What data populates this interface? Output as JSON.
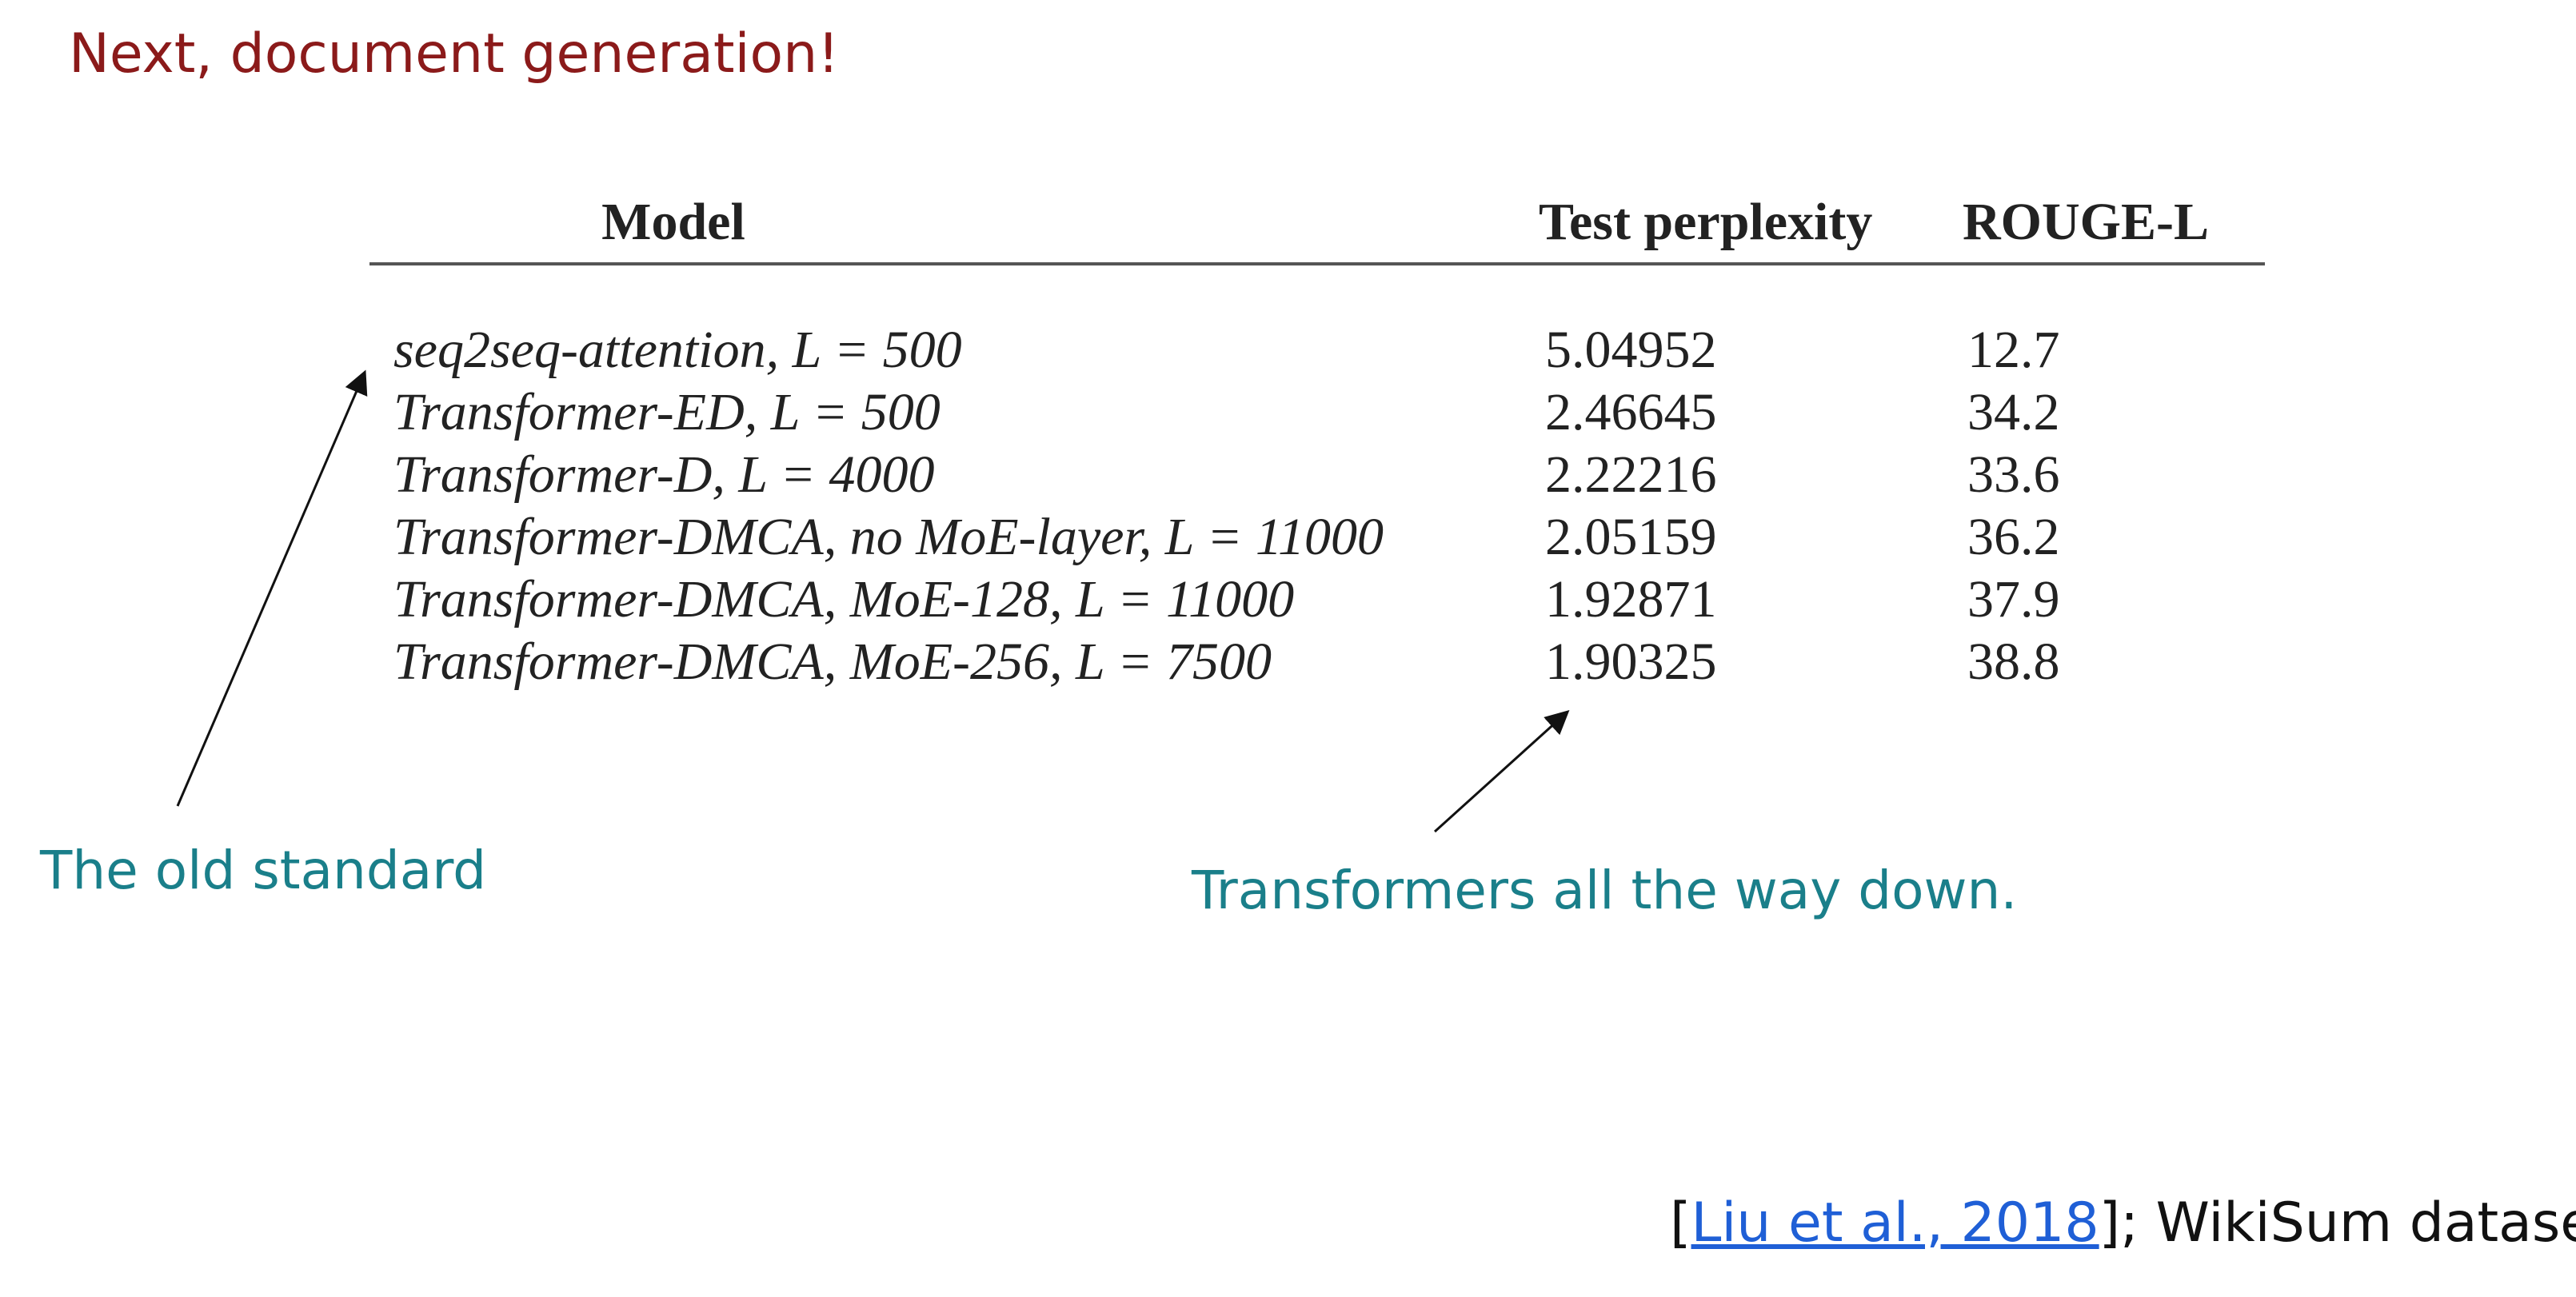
{
  "slide_title": "Next, document generation!",
  "table": {
    "headers": {
      "model": "Model",
      "perplexity": "Test perplexity",
      "rouge": "ROUGE-L"
    },
    "rows": [
      {
        "model": "seq2seq-attention, L = 500",
        "perplexity": "5.04952",
        "rouge": "12.7"
      },
      {
        "model": "Transformer-ED, L = 500",
        "perplexity": "2.46645",
        "rouge": "34.2"
      },
      {
        "model": "Transformer-D, L = 4000",
        "perplexity": "2.22216",
        "rouge": "33.6"
      },
      {
        "model": "Transformer-DMCA, no MoE-layer, L = 11000",
        "perplexity": "2.05159",
        "rouge": "36.2"
      },
      {
        "model": "Transformer-DMCA, MoE-128, L = 11000",
        "perplexity": "1.92871",
        "rouge": "37.9"
      },
      {
        "model": "Transformer-DMCA, MoE-256, L = 7500",
        "perplexity": "1.90325",
        "rouge": "38.8"
      }
    ]
  },
  "annotations": {
    "old_standard": "The old standard",
    "transformers": "Transformers all the way down."
  },
  "citation": {
    "open_bracket": "[",
    "link_text": "Liu et al., 2018",
    "suffix": "]; WikiSum dataset"
  },
  "colors": {
    "title": "#8b1a1a",
    "annotation": "#1a7f8a",
    "link": "#1f5fd6"
  }
}
